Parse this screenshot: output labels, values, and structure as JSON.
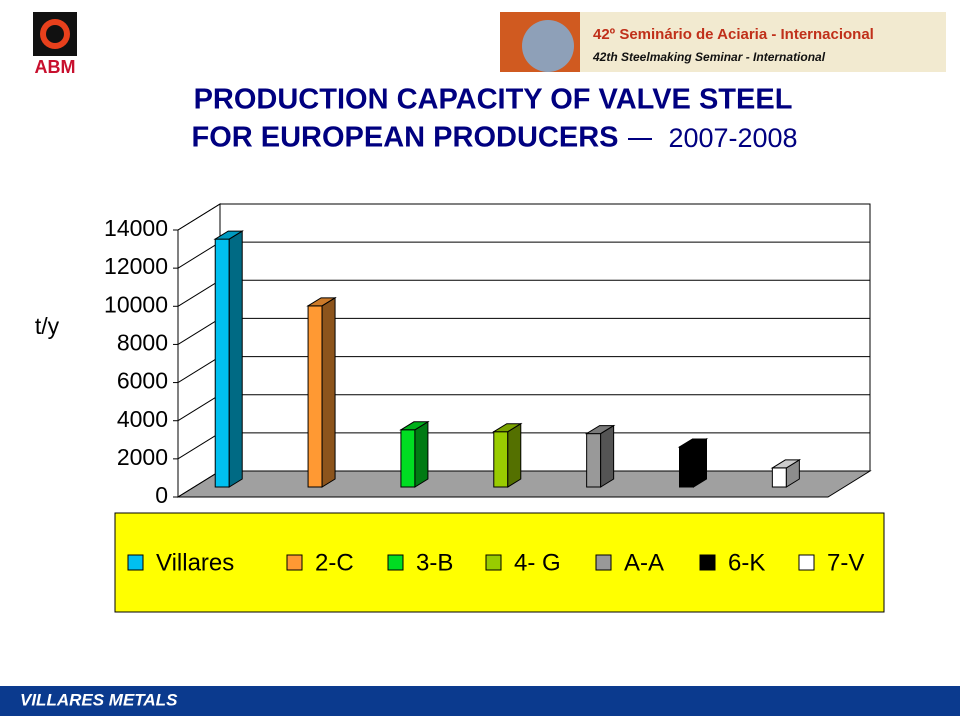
{
  "header": {
    "logo_text": "ABM",
    "banner_line1": "42º Seminário de Aciaria - Internacional",
    "banner_line2": "42th Steelmaking Seminar - International"
  },
  "chart_data": {
    "type": "bar3d",
    "title": "PRODUCTION CAPACITY OF VALVE STEEL",
    "subtitle": "FOR EUROPEAN PRODUCERS",
    "period": "2007-2008",
    "y_label": "t/y",
    "categories": [
      null
    ],
    "series": [
      {
        "name": "Villares",
        "color": "#00c0f0",
        "values": [
          13000
        ]
      },
      {
        "name": "2-C",
        "color": "#ff9933",
        "values": [
          9500
        ]
      },
      {
        "name": "3-B",
        "color": "#00dd22",
        "values": [
          3000
        ]
      },
      {
        "name": "4- G",
        "color": "#99cc00",
        "values": [
          2900
        ]
      },
      {
        "name": "A-A",
        "color": "#999999",
        "values": [
          2800
        ]
      },
      {
        "name": "6-K",
        "color": "#000000",
        "values": [
          2100
        ]
      },
      {
        "name": "7-V",
        "color": "#ffffff",
        "values": [
          1000
        ]
      }
    ],
    "ylim": [
      0,
      14000
    ],
    "yticks": [
      0,
      2000,
      4000,
      6000,
      8000,
      10000,
      12000,
      14000
    ],
    "grid": true,
    "legend_background": "#ffff00"
  },
  "footer": {
    "brand": "VILLARES METALS"
  }
}
